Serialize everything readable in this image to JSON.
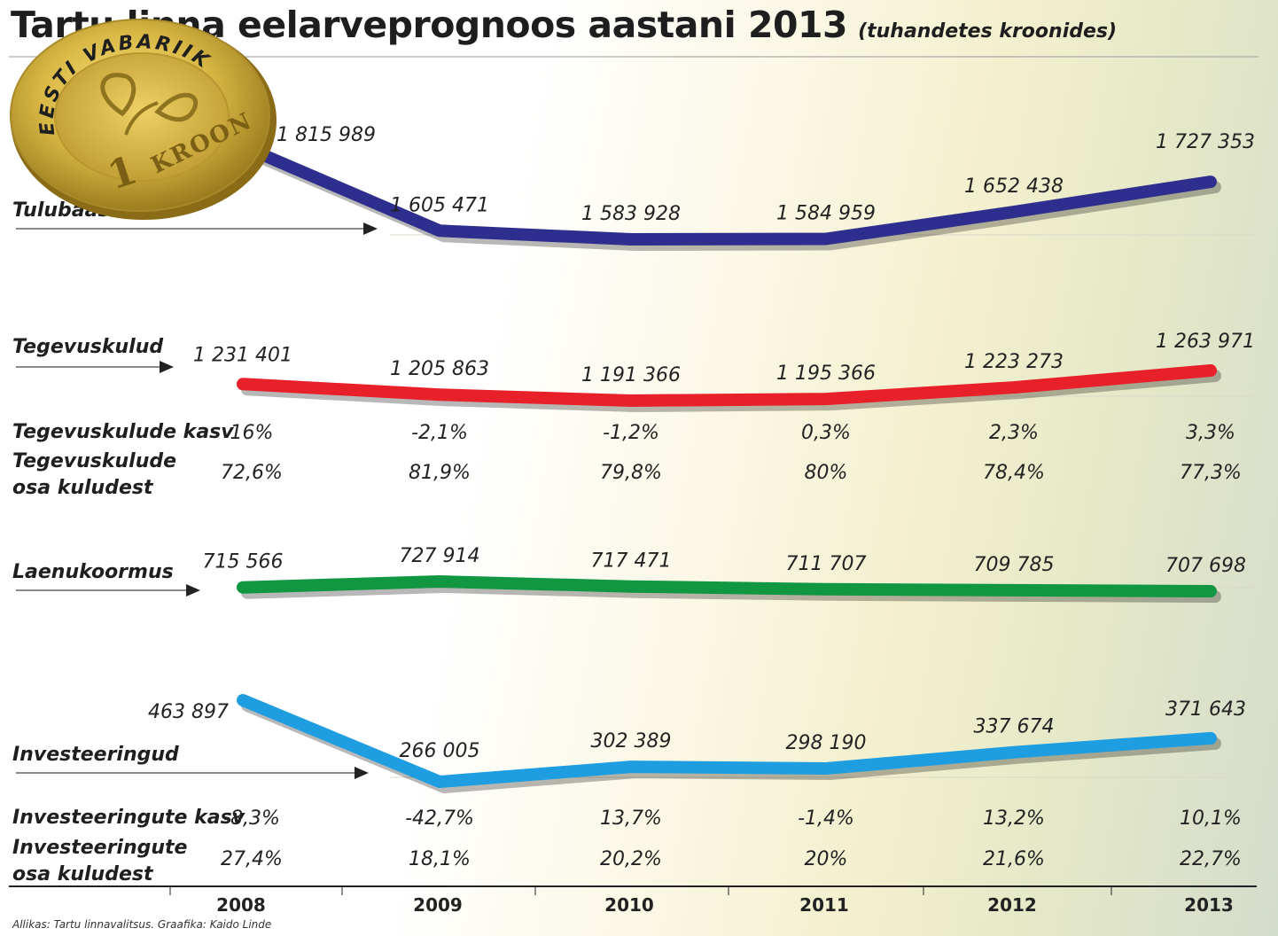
{
  "title": "Tartu linna eelarveprognoos aastani 2013",
  "unit": "(tuhandetes kroonides)",
  "source": "Allikas: Tartu linnavalitsus. Graafika: Kaido Linde",
  "coin": {
    "top_text": "EESTI VABARIIK",
    "value_number": "1",
    "value_text": "KROON"
  },
  "chart_data": {
    "type": "line",
    "x": [
      "2008",
      "2009",
      "2010",
      "2011",
      "2012",
      "2013"
    ],
    "series": [
      {
        "name": "Tulubaas",
        "color": "#2e2e8e",
        "values": [
          1815989,
          1605471,
          1583928,
          1584959,
          1652438,
          1727353
        ],
        "labels": [
          "1 815 989",
          "1 605 471",
          "1 583 928",
          "1 584 959",
          "1 652 438",
          "1 727 353"
        ]
      },
      {
        "name": "Tegevuskulud",
        "color": "#e8202a",
        "values": [
          1231401,
          1205863,
          1191366,
          1195366,
          1223273,
          1263971
        ],
        "labels": [
          "1 231 401",
          "1 205 863",
          "1 191 366",
          "1 195 366",
          "1 223 273",
          "1 263 971"
        ]
      },
      {
        "name": "Laenukoormus",
        "color": "#119642",
        "values": [
          715566,
          727914,
          717471,
          711707,
          709785,
          707698
        ],
        "labels": [
          "715 566",
          "727 914",
          "717 471",
          "711 707",
          "709 785",
          "707 698"
        ]
      },
      {
        "name": "Investeeringud",
        "color": "#1e9ee0",
        "values": [
          463897,
          266005,
          302389,
          298190,
          337674,
          371643
        ],
        "labels": [
          "463 897",
          "266 005",
          "302 389",
          "298 190",
          "337 674",
          "371 643"
        ]
      }
    ],
    "rows": [
      {
        "name": "Tegevuskulude kasv",
        "values": [
          "16%",
          "-2,1%",
          "-1,2%",
          "0,3%",
          "2,3%",
          "3,3%"
        ]
      },
      {
        "name": "Tegevuskulude osa kuludest",
        "values": [
          "72,6%",
          "81,9%",
          "79,8%",
          "80%",
          "78,4%",
          "77,3%"
        ]
      },
      {
        "name": "Investeeringute kasv",
        "values": [
          "-8,3%",
          "-42,7%",
          "13,7%",
          "-1,4%",
          "13,2%",
          "10,1%"
        ]
      },
      {
        "name": "Investeeringute osa kuludest",
        "values": [
          "27,4%",
          "18,1%",
          "20,2%",
          "20%",
          "21,6%",
          "22,7%"
        ]
      }
    ]
  }
}
